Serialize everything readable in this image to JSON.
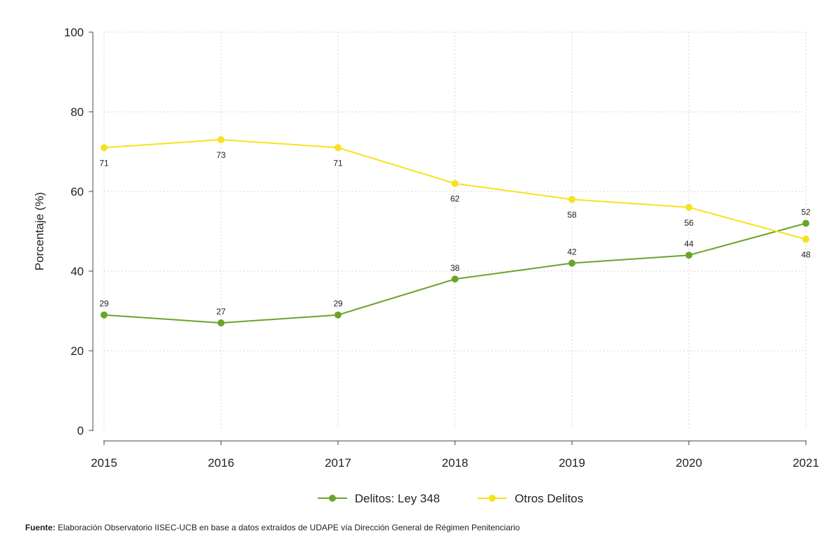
{
  "chart_data": {
    "type": "line",
    "x": [
      "2015",
      "2016",
      "2017",
      "2018",
      "2019",
      "2020",
      "2021"
    ],
    "series": [
      {
        "name": "Delitos: Ley 348",
        "values": [
          29,
          27,
          29,
          38,
          42,
          44,
          52
        ],
        "color": "#6aa329",
        "label_position": "above"
      },
      {
        "name": "Otros Delitos",
        "values": [
          71,
          73,
          71,
          62,
          58,
          56,
          48
        ],
        "color": "#f7e11e",
        "label_position": "below"
      }
    ],
    "ylabel": "Porcentaje (%)",
    "ylim": [
      0,
      100
    ],
    "yticks": [
      0,
      20,
      40,
      60,
      80,
      100
    ],
    "grid": true,
    "legend_position": "bottom-center"
  },
  "source": {
    "label": "Fuente:",
    "text": "Elaboración Observatorio IISEC-UCB en base a datos  extraídos de UDAPE vía Dirección General de Régimen Penitenciario"
  }
}
